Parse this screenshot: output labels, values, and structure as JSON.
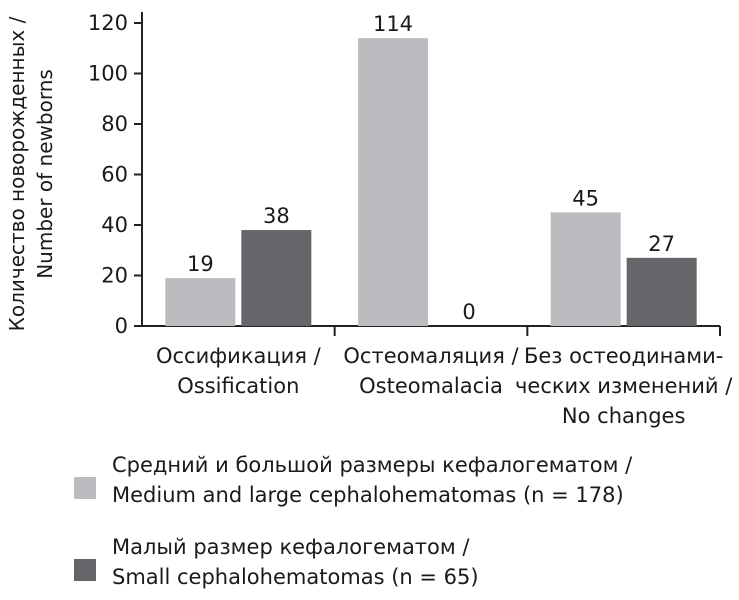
{
  "chart_data": {
    "type": "bar",
    "ylabel_lines": [
      "Количество новорожденных /",
      "Number of newborns"
    ],
    "ylim": [
      0,
      120
    ],
    "yticks": [
      0,
      20,
      40,
      60,
      80,
      100,
      120
    ],
    "categories": [
      [
        "Оссификация /",
        "Ossification"
      ],
      [
        "Остеомаляция /",
        "Osteomalacia"
      ],
      [
        "Без остеодинами-",
        "ческих изменений /",
        "No changes"
      ]
    ],
    "series": [
      {
        "name_lines": [
          "Средний и большой размеры кефалогематом /",
          "Medium and large cephalohematomas (n = 178)"
        ],
        "values": [
          19,
          114,
          45
        ],
        "color": "#bcbcc0"
      },
      {
        "name_lines": [
          "Малый размер кефалогематом /",
          "Small cephalohematomas (n = 65)"
        ],
        "values": [
          38,
          0,
          27
        ],
        "color": "#66666a"
      }
    ],
    "data_labels": [
      [
        "19",
        "114",
        "45"
      ],
      [
        "38",
        "0",
        "27"
      ]
    ],
    "grid": false,
    "legend_position": "bottom"
  }
}
